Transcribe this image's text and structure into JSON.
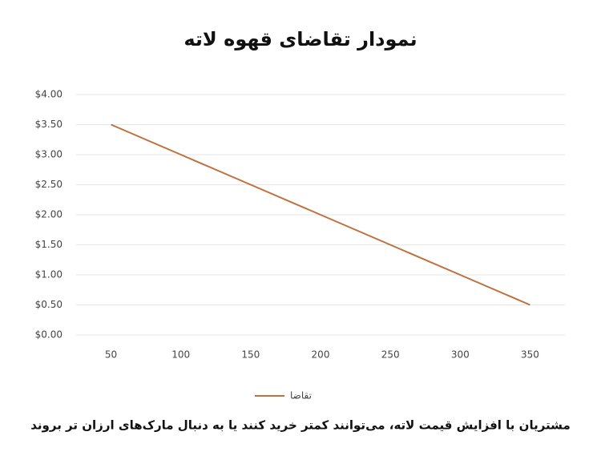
{
  "chart_data": {
    "type": "line",
    "title": "نمودار تقاضای قهوه لاته",
    "x": [
      50,
      100,
      150,
      200,
      250,
      300,
      350
    ],
    "series": [
      {
        "name": "تقاضا",
        "color": "#c0703c",
        "values": [
          3.5,
          3.0,
          2.5,
          2.0,
          1.5,
          1.0,
          0.5
        ]
      }
    ],
    "xlim": [
      25,
      375
    ],
    "xticks": [
      50,
      100,
      150,
      200,
      250,
      300,
      350
    ],
    "ylim": [
      0,
      4
    ],
    "yticks": [
      {
        "value": 0,
        "label": "$0.00"
      },
      {
        "value": 0.5,
        "label": "$0.50"
      },
      {
        "value": 1,
        "label": "$1.00"
      },
      {
        "value": 1.5,
        "label": "$1.50"
      },
      {
        "value": 2,
        "label": "$2.00"
      },
      {
        "value": 2.5,
        "label": "$2.50"
      },
      {
        "value": 3,
        "label": "$3.00"
      },
      {
        "value": 3.5,
        "label": "$3.50"
      },
      {
        "value": 4,
        "label": "$4.00"
      }
    ],
    "grid": true,
    "legend": "bottom",
    "caption": "مشتریان با افزایش قیمت لاته، می‌توانند کمتر خرید کنند یا به دنبال مارک‌های ارزان تر بروند"
  }
}
